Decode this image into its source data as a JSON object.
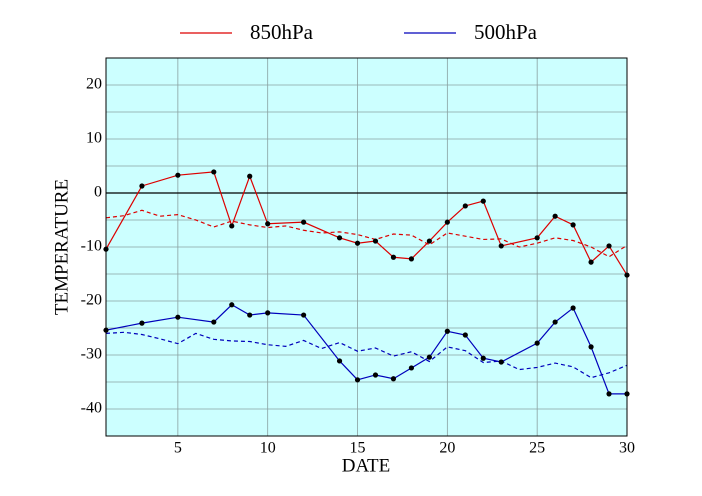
{
  "chart_data": {
    "type": "line",
    "xlabel": "DATE",
    "ylabel": "TEMPERATURE",
    "xlim": [
      1,
      30
    ],
    "ylim": [
      -45,
      25
    ],
    "xticks": [
      5,
      10,
      15,
      20,
      25,
      30
    ],
    "yticks": [
      -40,
      -30,
      -20,
      -10,
      0,
      10,
      20
    ],
    "y_minor_ticks": [
      -35,
      -25,
      -15,
      -5,
      5,
      15
    ],
    "grid": true,
    "zero_line": true,
    "background": "#ccffff",
    "legend": "top",
    "series": [
      {
        "name": "850hPa",
        "color": "#dd0000",
        "x": [
          1,
          3,
          5,
          7,
          8,
          9,
          10,
          12,
          14,
          15,
          16,
          17,
          18,
          19,
          20,
          21,
          22,
          23,
          25,
          26,
          27,
          28,
          29,
          30
        ],
        "values": [
          -10.4,
          1.3,
          3.3,
          3.9,
          -6.1,
          3.1,
          -5.7,
          -5.4,
          -8.3,
          -9.3,
          -8.9,
          -11.9,
          -12.2,
          -8.9,
          -5.4,
          -2.4,
          -1.5,
          -9.8,
          -8.3,
          -4.3,
          -5.9,
          -12.8,
          -9.8,
          -15.2
        ]
      },
      {
        "name": "500hPa",
        "color": "#0000bb",
        "x": [
          1,
          3,
          5,
          7,
          8,
          9,
          10,
          12,
          14,
          15,
          16,
          17,
          18,
          19,
          20,
          21,
          22,
          23,
          25,
          26,
          27,
          28,
          29,
          30
        ],
        "values": [
          -25.4,
          -24.1,
          -23.0,
          -23.9,
          -20.7,
          -22.6,
          -22.2,
          -22.6,
          -31.1,
          -34.6,
          -33.7,
          -34.4,
          -32.4,
          -30.4,
          -25.6,
          -26.3,
          -30.6,
          -31.3,
          -27.8,
          -23.9,
          -21.3,
          -28.5,
          -37.2,
          -37.2
        ]
      }
    ],
    "reference_lines": [
      {
        "color": "#dd0000",
        "style": "dashed",
        "x": [
          1,
          2,
          3,
          4,
          5,
          6,
          7,
          8,
          9,
          10,
          11,
          12,
          13,
          14,
          15,
          16,
          17,
          18,
          19,
          20,
          21,
          22,
          23,
          24,
          25,
          26,
          27,
          28,
          29,
          30
        ],
        "values": [
          -4.6,
          -4.2,
          -3.2,
          -4.3,
          -4.0,
          -5.0,
          -6.3,
          -5.2,
          -5.9,
          -6.4,
          -6.1,
          -6.9,
          -7.4,
          -7.2,
          -7.7,
          -8.6,
          -7.6,
          -7.8,
          -9.6,
          -7.4,
          -8.0,
          -8.6,
          -8.5,
          -10.0,
          -9.3,
          -8.3,
          -8.8,
          -10.0,
          -11.8,
          -9.7
        ]
      },
      {
        "color": "#0000bb",
        "style": "dashed",
        "x": [
          1,
          2,
          3,
          4,
          5,
          6,
          7,
          8,
          9,
          10,
          11,
          12,
          13,
          14,
          15,
          16,
          17,
          18,
          19,
          20,
          21,
          22,
          23,
          24,
          25,
          26,
          27,
          28,
          29,
          30
        ],
        "values": [
          -26.0,
          -25.8,
          -26.2,
          -27.0,
          -27.9,
          -26.0,
          -27.1,
          -27.4,
          -27.5,
          -28.1,
          -28.4,
          -27.3,
          -28.8,
          -27.7,
          -29.3,
          -28.7,
          -30.2,
          -29.4,
          -31.2,
          -28.5,
          -29.2,
          -31.4,
          -31.1,
          -32.7,
          -32.3,
          -31.5,
          -32.2,
          -34.2,
          -33.3,
          -31.9
        ]
      }
    ]
  }
}
